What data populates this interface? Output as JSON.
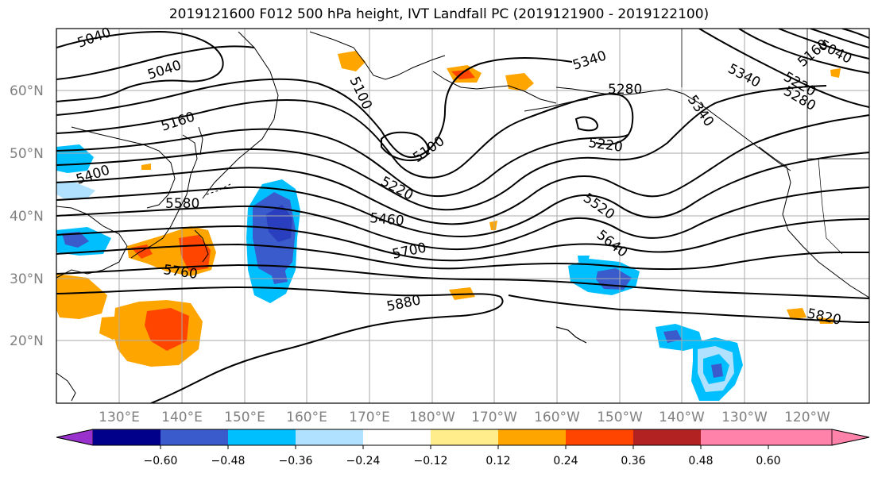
{
  "title": "2019121600 F012 500 hPa height, IVT Landfall PC (2019121900 - 2019122100)",
  "lat_labels": [
    "60°N",
    "50°N",
    "40°N",
    "30°N",
    "20°N"
  ],
  "lon_labels": [
    "130°E",
    "140°E",
    "150°E",
    "160°E",
    "170°E",
    "180°W",
    "170°W",
    "160°W",
    "150°W",
    "140°W",
    "130°W",
    "120°W"
  ],
  "contour_labels": [
    "5040",
    "5040",
    "5040",
    "5100",
    "5100",
    "5160",
    "5160",
    "5220",
    "5220",
    "5220",
    "5280",
    "5280",
    "5340",
    "5340",
    "5340",
    "5400",
    "5460",
    "5520",
    "5580",
    "5640",
    "5700",
    "5760",
    "5820",
    "5880"
  ],
  "colorbar": {
    "ticks": [
      "−0.60",
      "−0.48",
      "−0.36",
      "−0.24",
      "−0.12",
      "0.12",
      "0.24",
      "0.36",
      "0.48",
      "0.60"
    ],
    "colors": [
      "#9932CC",
      "#00008B",
      "#3A5BCB",
      "#00BFFF",
      "#B0E2FF",
      "#FFFFFF",
      "#FFEC8B",
      "#FFA500",
      "#FF4500",
      "#B22222",
      "#FF82AB"
    ]
  },
  "palette": {
    "dark_blue": "#2A3FBF",
    "mid_blue": "#3A5BCB",
    "cyan": "#00BFFF",
    "light_blue": "#B0E2FF",
    "yellow": "#FFEC8B",
    "orange": "#FFA500",
    "red": "#FF4500"
  }
}
